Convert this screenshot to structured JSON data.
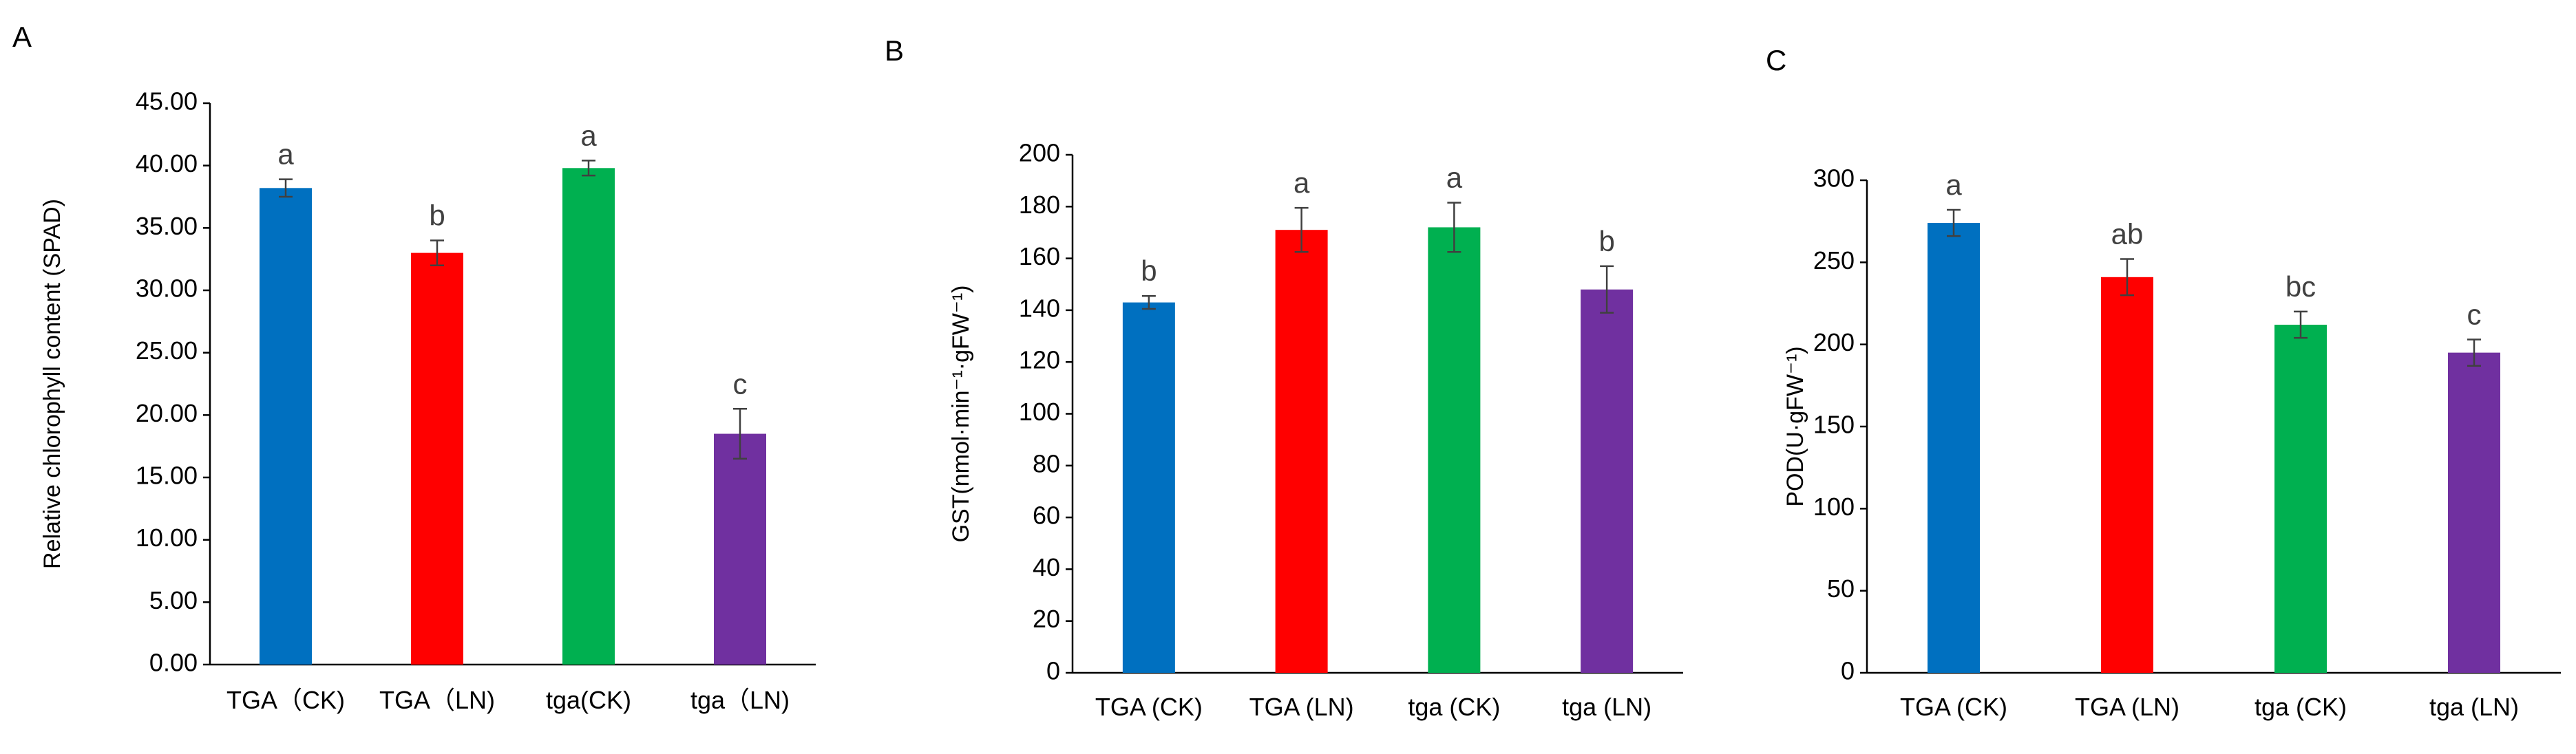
{
  "colors": {
    "bar_colors": [
      "#0070c0",
      "#ff0000",
      "#00b050",
      "#7030a0"
    ],
    "axis": "#000000",
    "text": "#000000",
    "error_bar": "#404040",
    "sig_letter": "#404040"
  },
  "chart_data": [
    {
      "panel_label": "A",
      "type": "bar",
      "title": "",
      "xlabel": "",
      "ylabel": "Relative chlorophyll content (SPAD)",
      "categories": [
        "TGA（CK)",
        "TGA（LN)",
        "tga(CK)",
        "tga（LN)"
      ],
      "values": [
        38.2,
        33.0,
        39.8,
        18.5
      ],
      "errors": [
        0.7,
        1.0,
        0.6,
        2.0
      ],
      "significance": [
        "a",
        "b",
        "a",
        "c"
      ],
      "ylim": [
        0,
        45
      ],
      "yticks": [
        0,
        5,
        10,
        15,
        20,
        25,
        30,
        35,
        40,
        45
      ],
      "ytick_labels": [
        "0.00",
        "5.00",
        "10.00",
        "15.00",
        "20.00",
        "25.00",
        "30.00",
        "35.00",
        "40.00",
        "45.00"
      ],
      "grid": false
    },
    {
      "panel_label": "B",
      "type": "bar",
      "title": "",
      "xlabel": "",
      "ylabel": "GST(nmol·min⁻¹·gFW⁻¹)",
      "categories": [
        "TGA (CK)",
        "TGA (LN)",
        "tga (CK)",
        "tga (LN)"
      ],
      "values": [
        143,
        171,
        172,
        148
      ],
      "errors": [
        2.5,
        8.5,
        9.5,
        9.0
      ],
      "significance": [
        "b",
        "a",
        "a",
        "b"
      ],
      "ylim": [
        0,
        200
      ],
      "yticks": [
        0,
        20,
        40,
        60,
        80,
        100,
        120,
        140,
        160,
        180,
        200
      ],
      "ytick_labels": [
        "0",
        "20",
        "40",
        "60",
        "80",
        "100",
        "120",
        "140",
        "160",
        "180",
        "200"
      ],
      "grid": false
    },
    {
      "panel_label": "C",
      "type": "bar",
      "title": "",
      "xlabel": "",
      "ylabel": "POD(U·gFW⁻¹)",
      "categories": [
        "TGA (CK)",
        "TGA (LN)",
        "tga (CK)",
        "tga (LN)"
      ],
      "values": [
        274,
        241,
        212,
        195
      ],
      "errors": [
        8,
        11,
        8,
        8
      ],
      "significance": [
        "a",
        "ab",
        "bc",
        "c"
      ],
      "ylim": [
        0,
        300
      ],
      "yticks": [
        0,
        50,
        100,
        150,
        200,
        250,
        300
      ],
      "ytick_labels": [
        "0",
        "50",
        "100",
        "150",
        "200",
        "250",
        "300"
      ],
      "grid": false
    }
  ]
}
